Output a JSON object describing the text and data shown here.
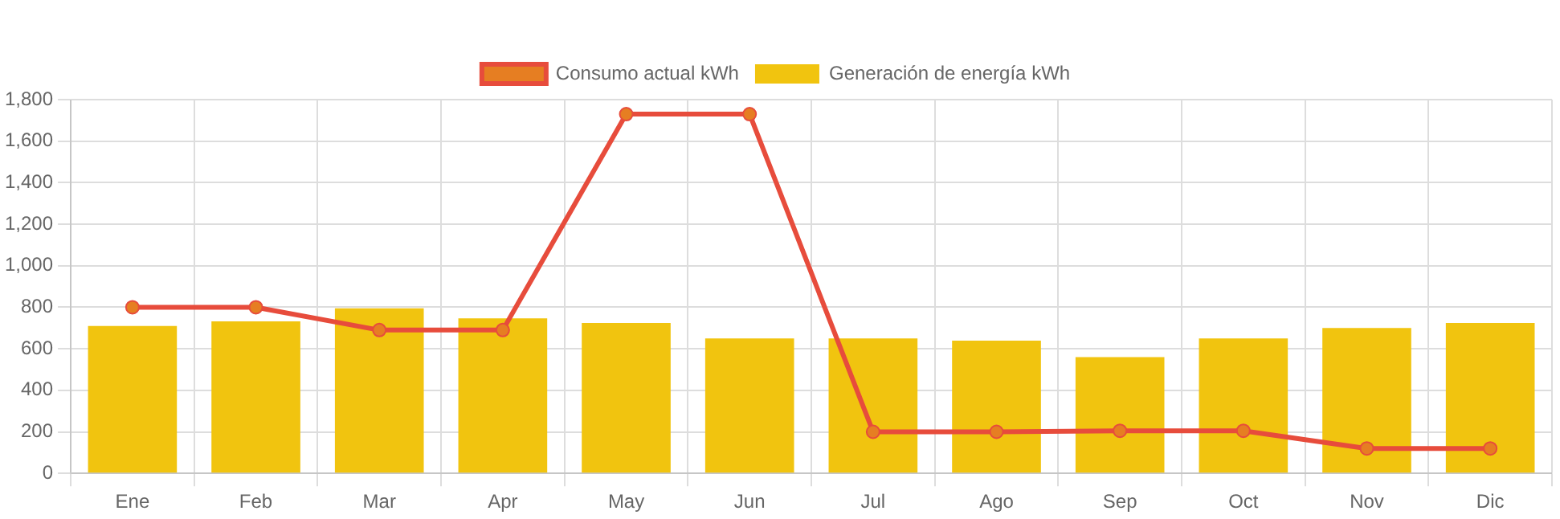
{
  "chart_data": {
    "type": "bar",
    "categories": [
      "Ene",
      "Feb",
      "Mar",
      "Apr",
      "May",
      "Jun",
      "Jul",
      "Ago",
      "Sep",
      "Oct",
      "Nov",
      "Dic"
    ],
    "series": [
      {
        "name": "Consumo actual kWh",
        "type": "line",
        "color": "#e74c3c",
        "values": [
          800,
          800,
          690,
          690,
          1730,
          1730,
          200,
          200,
          205,
          205,
          120,
          120
        ]
      },
      {
        "name": "Generación de energía kWh",
        "color": "#f1c40f",
        "values": [
          710,
          732,
          795,
          747,
          724,
          650,
          650,
          639,
          560,
          650,
          700,
          724
        ]
      }
    ],
    "ylim": [
      0,
      1800
    ],
    "yticks": [
      0,
      200,
      400,
      600,
      800,
      {
        "value": 1000,
        "label": "1,000"
      },
      {
        "value": 1200,
        "label": "1,200"
      },
      {
        "value": 1400,
        "label": "1,400"
      },
      {
        "value": 1600,
        "label": "1,600"
      },
      {
        "value": 1800,
        "label": "1,800"
      }
    ],
    "grid": true,
    "legend": "top",
    "marker": "circle"
  }
}
